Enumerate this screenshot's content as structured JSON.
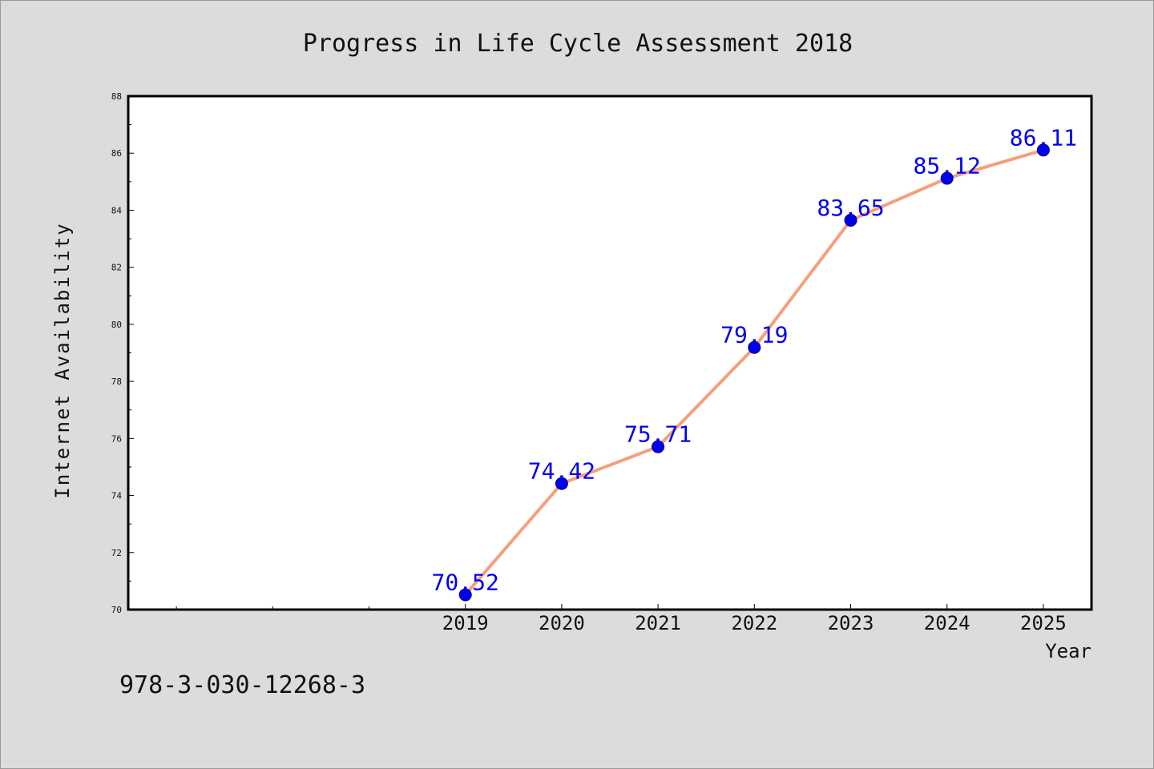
{
  "chart_data": {
    "type": "line",
    "title": "Progress in Life Cycle Assessment 2018",
    "xlabel": "Year",
    "ylabel": "Internet Availability",
    "x": [
      2019,
      2020,
      2021,
      2022,
      2023,
      2024,
      2025
    ],
    "x_tick_labels": [
      "2019",
      "2020",
      "2021",
      "2022",
      "2023",
      "2024",
      "2025"
    ],
    "xlim": [
      2015.5,
      2025.5
    ],
    "ylim": [
      70,
      88
    ],
    "y_ticks": [
      70,
      72,
      74,
      76,
      78,
      80,
      82,
      84,
      86,
      88
    ],
    "y_tick_labels": [
      "70",
      "72",
      "74",
      "76",
      "78",
      "80",
      "82",
      "84",
      "86",
      "88"
    ],
    "series": [
      {
        "values": [
          70.52,
          74.42,
          75.71,
          79.19,
          83.65,
          85.12,
          86.11
        ],
        "labels": [
          "70.52",
          "74.42",
          "75.71",
          "79.19",
          "83.65",
          "85.12",
          "86.11"
        ],
        "line_color": "#f4a07c",
        "marker_color": "#0000ee",
        "label_color": "#0000ee"
      }
    ],
    "grid": false,
    "legend": "none"
  },
  "footer": {
    "isbn": "978-3-030-12268-3"
  }
}
